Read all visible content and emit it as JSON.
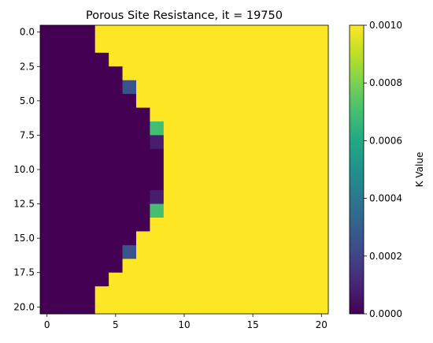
{
  "chart_data": {
    "type": "heatmap",
    "title": "Porous Site Resistance, it = 19750",
    "xlabel": "",
    "ylabel": "",
    "colorbar_label": "K Value",
    "colormap": "viridis",
    "grid": false,
    "rows": 21,
    "cols": 21,
    "x_ticks": [
      0,
      5,
      10,
      15,
      20
    ],
    "x_tick_labels": [
      "0",
      "5",
      "10",
      "15",
      "20"
    ],
    "y_ticks": [
      0,
      2.5,
      5,
      7.5,
      10,
      12.5,
      15,
      17.5,
      20
    ],
    "y_tick_labels": [
      "0.0",
      "2.5",
      "5.0",
      "7.5",
      "10.0",
      "12.5",
      "15.0",
      "17.5",
      "20.0"
    ],
    "xlim": [
      -0.5,
      20.5
    ],
    "ylim": [
      20.5,
      -0.5
    ],
    "vmin": 0.0,
    "vmax": 0.001,
    "colorbar_ticks": [
      0.0,
      0.0002,
      0.0004,
      0.0006,
      0.0008,
      0.001
    ],
    "colorbar_tick_labels": [
      "0.0000",
      "0.0002",
      "0.0004",
      "0.0006",
      "0.0008",
      "0.0010"
    ],
    "front_last_low_col_per_row": [
      3,
      3,
      4,
      5,
      5,
      6,
      7,
      8,
      8,
      8,
      8,
      8,
      8,
      8,
      7,
      6,
      5,
      5,
      4,
      3,
      3
    ],
    "partial_cells": [
      {
        "row": 4,
        "col": 6,
        "value": 0.00025
      },
      {
        "row": 7,
        "col": 8,
        "value": 0.0007
      },
      {
        "row": 8,
        "col": 8,
        "value": 8e-05
      },
      {
        "row": 12,
        "col": 8,
        "value": 8e-05
      },
      {
        "row": 13,
        "col": 8,
        "value": 0.0007
      },
      {
        "row": 16,
        "col": 6,
        "value": 0.00025
      }
    ],
    "low_value": 0.0,
    "high_value": 0.001
  }
}
